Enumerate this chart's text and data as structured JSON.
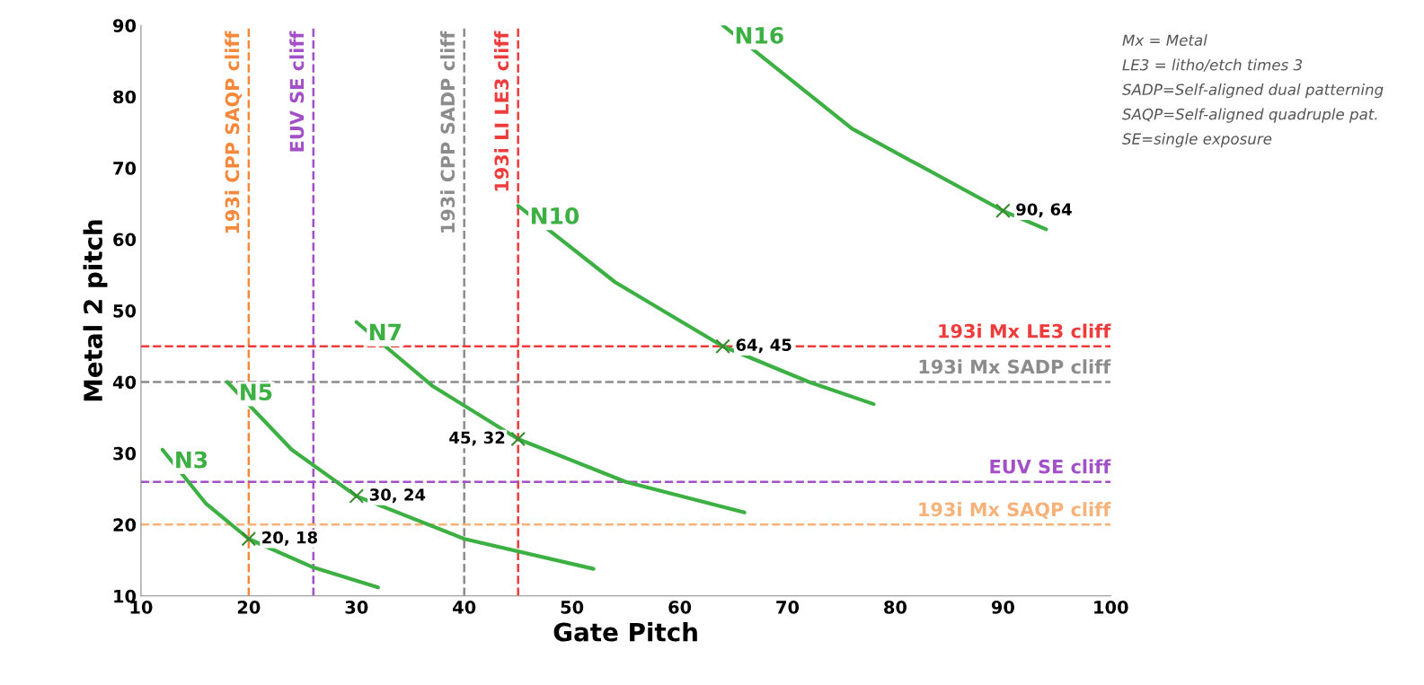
{
  "chart_data": {
    "type": "line",
    "xlabel": "Gate Pitch",
    "ylabel": "Metal 2 pitch",
    "xlim": [
      10,
      100
    ],
    "ylim": [
      10,
      90
    ],
    "xticks": [
      10,
      20,
      30,
      40,
      50,
      60,
      70,
      80,
      90,
      100
    ],
    "yticks": [
      10,
      20,
      30,
      40,
      50,
      60,
      70,
      80,
      90
    ],
    "grid": false,
    "legend": false,
    "marker": "none",
    "line_style": "solid",
    "series": [
      {
        "name": "N3",
        "color": "#3cb043",
        "x": [
          12,
          16,
          20,
          26,
          32
        ],
        "values": [
          30.5,
          23,
          18,
          14,
          11.2
        ]
      },
      {
        "name": "N5",
        "color": "#3cb043",
        "x": [
          18,
          24,
          30,
          40,
          52
        ],
        "values": [
          40,
          30.5,
          24,
          18,
          13.8
        ]
      },
      {
        "name": "N7",
        "color": "#3cb043",
        "x": [
          30,
          37,
          45,
          55,
          66
        ],
        "values": [
          48.4,
          39.5,
          32,
          26,
          21.7
        ]
      },
      {
        "name": "N10",
        "color": "#3cb043",
        "x": [
          45,
          54,
          64,
          72,
          78
        ],
        "values": [
          64.7,
          54,
          45,
          40,
          36.9
        ]
      },
      {
        "name": "N16",
        "color": "#3cb043",
        "x": [
          64,
          76,
          90,
          94
        ],
        "values": [
          90,
          75.5,
          64,
          61.4
        ]
      },
      {
        "type": "scatter",
        "marker": "cross",
        "color": "#3a8a30",
        "x": [
          20,
          30,
          45,
          64,
          90
        ],
        "values": [
          18,
          24,
          32,
          45,
          64
        ],
        "value_labels": [
          "20, 18",
          "30, 24",
          "45, 32",
          "64, 45",
          "90, 64"
        ]
      }
    ],
    "ref_lines": [
      {
        "axis": "x",
        "value": 20,
        "label": "193i CPP SAQP cliff",
        "color": "#f5883a",
        "line_style": "dashed"
      },
      {
        "axis": "x",
        "value": 26,
        "label": "EUV SE cliff",
        "color": "#a24fc8",
        "line_style": "dashed"
      },
      {
        "axis": "x",
        "value": 40,
        "label": "193i CPP SADP cliff",
        "color": "#8c8c8c",
        "line_style": "dashed"
      },
      {
        "axis": "x",
        "value": 45,
        "label": "193i LI LE3 cliff",
        "color": "#ee3b3b",
        "line_style": "dashed"
      },
      {
        "axis": "y",
        "value": 45,
        "label": "193i Mx LE3 cliff",
        "color": "#ee3b3b",
        "line_style": "dashed"
      },
      {
        "axis": "y",
        "value": 40,
        "label": "193i Mx SADP cliff",
        "color": "#8c8c8c",
        "line_style": "dashed"
      },
      {
        "axis": "y",
        "value": 26,
        "label": "EUV SE cliff",
        "color": "#a24fc8",
        "line_style": "dashed"
      },
      {
        "axis": "y",
        "value": 20,
        "label": "193i Mx SAQP cliff",
        "color": "#f7b27a",
        "line_style": "dashed"
      }
    ],
    "annotations": [
      "Mx = Metal",
      "LE3 = litho/etch times 3",
      "SADP=Self-aligned dual patterning",
      "SAQP=Self-aligned quadruple pat.",
      "SE=single exposure"
    ]
  }
}
